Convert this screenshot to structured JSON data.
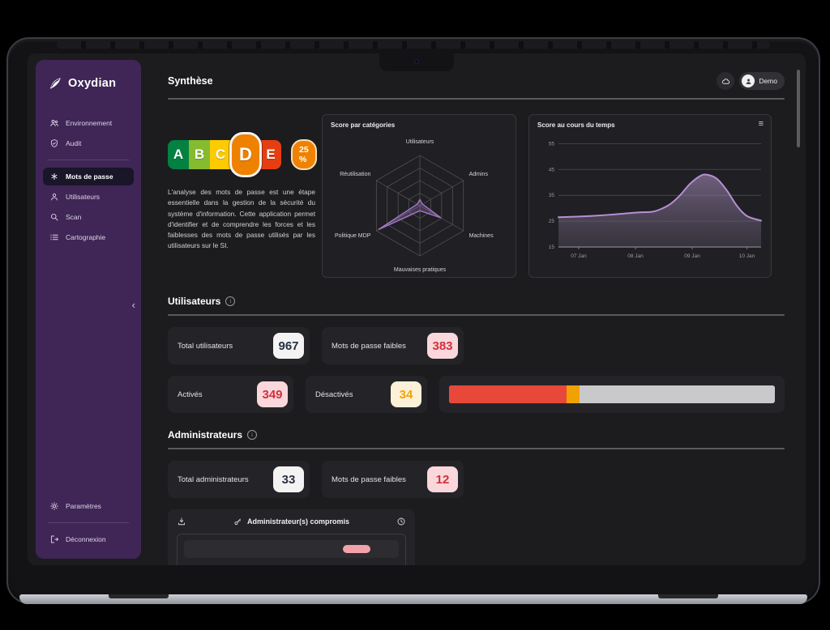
{
  "brand": {
    "name": "Oxydian",
    "logo_icon": "leaf-logo-icon"
  },
  "header": {
    "title": "Synthèse",
    "theme_icon": "cloud-icon",
    "user": {
      "name": "Demo",
      "avatar_icon": "person-icon"
    }
  },
  "sidebar": {
    "items": [
      {
        "icon": "users-group-icon",
        "label": "Environnement",
        "active": false
      },
      {
        "icon": "shield-icon",
        "label": "Audit",
        "active": false
      },
      {
        "icon": "password-asterisk-icon",
        "label": "Mots de passe",
        "active": true
      },
      {
        "icon": "user-icon",
        "label": "Utilisateurs",
        "active": false
      },
      {
        "icon": "search-icon",
        "label": "Scan",
        "active": false
      },
      {
        "icon": "list-icon",
        "label": "Cartographie",
        "active": false
      }
    ],
    "collapse_glyph": "‹",
    "footer_items": [
      {
        "icon": "gear-icon",
        "label": "Paramètres"
      },
      {
        "icon": "logout-icon",
        "label": "Déconnexion"
      }
    ]
  },
  "score": {
    "grades": [
      {
        "letter": "A",
        "color": "#038141"
      },
      {
        "letter": "B",
        "color": "#85bb2f"
      },
      {
        "letter": "C",
        "color": "#fecb02"
      },
      {
        "letter": "D",
        "color": "#ee8100"
      },
      {
        "letter": "E",
        "color": "#e63e11"
      }
    ],
    "active_grade": "D",
    "percent": "25 %",
    "description": "L'analyse des mots de passe est une étape essentielle dans la gestion de la sécurité du système d'information. Cette application permet d'identifier et de comprendre les forces et les faiblesses des mots de passe utilisés par les utilisateurs sur le SI."
  },
  "chart_data": [
    {
      "type": "radar",
      "title": "Score par catégories",
      "categories": [
        "Utilisateurs",
        "Admins",
        "Machines",
        "Mauvaises pratiques",
        "Politique MDP",
        "Réutilisation"
      ],
      "values": [
        12,
        6,
        48,
        10,
        95,
        6
      ],
      "max": 100,
      "rings": 4,
      "line_color": "#a878c8",
      "fill_color": "rgba(168,120,200,0.28)",
      "grid_color": "#57575c",
      "label_color": "#d4d4d8"
    },
    {
      "type": "area",
      "title": "Score au cours du temps",
      "menu_icon": "hamburger-icon",
      "x_tick_labels": [
        "07 Jan",
        "08 Jan",
        "09 Jan",
        "10 Jan"
      ],
      "x_tick_pos": [
        0.1,
        0.38,
        0.66,
        0.93
      ],
      "y_ticks": [
        55,
        45,
        35,
        25,
        15
      ],
      "ylim": [
        15,
        57
      ],
      "points": [
        [
          0,
          26.5
        ],
        [
          0.08,
          26.7
        ],
        [
          0.16,
          27.0
        ],
        [
          0.24,
          27.4
        ],
        [
          0.32,
          27.9
        ],
        [
          0.4,
          28.4
        ],
        [
          0.46,
          28.6
        ],
        [
          0.5,
          29.5
        ],
        [
          0.55,
          31.5
        ],
        [
          0.6,
          35.0
        ],
        [
          0.65,
          39.5
        ],
        [
          0.7,
          42.5
        ],
        [
          0.73,
          43.0
        ],
        [
          0.78,
          41.5
        ],
        [
          0.83,
          37.0
        ],
        [
          0.88,
          31.0
        ],
        [
          0.93,
          27.0
        ],
        [
          1.0,
          25.2
        ]
      ],
      "line_color": "#b78fd4",
      "fill_top": "#9a82ae",
      "fill_bottom": "#6e6278",
      "grid_color": "#4c4c51",
      "axis_color": "#78787d",
      "label_color": "#9b9b9f"
    }
  ],
  "users_section": {
    "title": "Utilisateurs",
    "stats": [
      {
        "label": "Total utilisateurs",
        "value": "967",
        "style": "white"
      },
      {
        "label": "Mots de passe faibles",
        "value": "383",
        "style": "pink"
      },
      {
        "label": "Activés",
        "value": "349",
        "style": "pink"
      },
      {
        "label": "Désactivés",
        "value": "34",
        "style": "cream"
      }
    ],
    "bar": {
      "track_color": "#c9c9cb",
      "segments": [
        {
          "color": "#e8483a",
          "pct": 36
        },
        {
          "color": "#f0a202",
          "pct": 4
        }
      ]
    }
  },
  "admins_section": {
    "title": "Administrateurs",
    "stats": [
      {
        "label": "Total administrateurs",
        "value": "33",
        "style": "white"
      },
      {
        "label": "Mots de passe faibles",
        "value": "12",
        "style": "pink"
      }
    ]
  },
  "compromised": {
    "title": "Administrateur(s) compromis",
    "download_icon": "download-icon",
    "key_icon": "key-icon",
    "history_icon": "clock-icon"
  }
}
